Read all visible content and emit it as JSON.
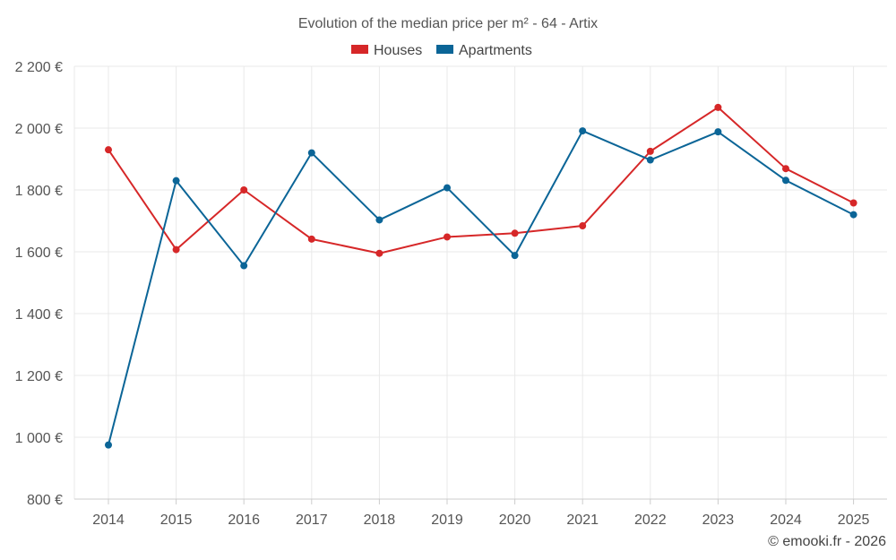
{
  "chart_data": {
    "type": "line",
    "title": "Evolution of the median price per m² - 64 - Artix",
    "categories": [
      "2014",
      "2015",
      "2016",
      "2017",
      "2018",
      "2019",
      "2020",
      "2021",
      "2022",
      "2023",
      "2024",
      "2025"
    ],
    "series": [
      {
        "name": "Houses",
        "color": "#d62728",
        "values": [
          1930,
          1607,
          1800,
          1641,
          1595,
          1648,
          1660,
          1684,
          1925,
          2067,
          1869,
          1758
        ]
      },
      {
        "name": "Apartments",
        "color": "#0b6597",
        "values": [
          975,
          1830,
          1555,
          1920,
          1703,
          1807,
          1588,
          1991,
          1897,
          1988,
          1831,
          1720
        ]
      }
    ],
    "y_ticks": [
      "800 €",
      "1 000 €",
      "1 200 €",
      "1 400 €",
      "1 600 €",
      "1 800 €",
      "2 000 €",
      "2 200 €"
    ],
    "y_tick_values": [
      800,
      1000,
      1200,
      1400,
      1600,
      1800,
      2000,
      2200
    ],
    "ylim": [
      800,
      2200
    ],
    "xlabel": "",
    "ylabel": "",
    "legend_position": "top-center",
    "grid": true
  },
  "credit": "© emooki.fr - 2026"
}
